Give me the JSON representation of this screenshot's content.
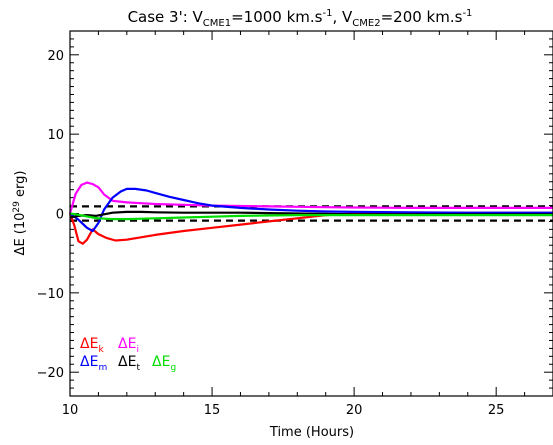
{
  "chart_data": {
    "type": "line",
    "title": {
      "prefix": "Case 3': V",
      "sub1": "CME1",
      "mid": "=1000 km.s",
      "sup1": "-1",
      "sep": ", V",
      "sub2": "CME2",
      "mid2": "=200 km.s",
      "sup2": "-1"
    },
    "xlabel": "Time (Hours)",
    "ylabel": {
      "main": "ΔE (10",
      "sup": "29",
      "end": " erg)"
    },
    "xlim": [
      10,
      27
    ],
    "ylim": [
      -23,
      23
    ],
    "x_ticks": [
      10,
      15,
      20,
      25
    ],
    "x_tick_labels": [
      "10",
      "15",
      "20",
      "25"
    ],
    "y_ticks": [
      -20,
      -10,
      0,
      10,
      20
    ],
    "y_tick_labels": [
      "−20",
      "−10",
      "0",
      "10",
      "20"
    ],
    "reference_lines": [
      0.9,
      -0.9
    ],
    "series": [
      {
        "name": "ΔE",
        "sub": "k",
        "color": "#ff0000",
        "x": [
          10.0,
          10.15,
          10.3,
          10.45,
          10.6,
          10.8,
          11.0,
          11.3,
          11.6,
          12.0,
          12.5,
          13.0,
          14.0,
          15.0,
          16.0,
          17.0,
          18.0,
          19.0,
          19.5,
          20.0,
          22.0,
          24.0,
          27.0
        ],
        "y": [
          0.0,
          -1.5,
          -3.5,
          -3.8,
          -3.3,
          -2.0,
          -2.6,
          -3.1,
          -3.4,
          -3.3,
          -3.0,
          -2.7,
          -2.2,
          -1.8,
          -1.4,
          -1.0,
          -0.6,
          -0.2,
          -0.1,
          0.0,
          0.1,
          0.1,
          0.1
        ]
      },
      {
        "name": "ΔE",
        "sub": "i",
        "color": "#ff00ff",
        "x": [
          10.0,
          10.2,
          10.4,
          10.6,
          10.8,
          11.0,
          11.2,
          11.5,
          12.0,
          12.5,
          13.0,
          14.0,
          15.0,
          16.0,
          17.0,
          18.0,
          19.0,
          20.0,
          22.0,
          24.0,
          27.0
        ],
        "y": [
          0.0,
          2.5,
          3.6,
          3.9,
          3.7,
          3.3,
          2.4,
          1.6,
          1.4,
          1.3,
          1.2,
          1.1,
          1.0,
          0.95,
          0.9,
          0.85,
          0.8,
          0.75,
          0.7,
          0.7,
          0.7
        ]
      },
      {
        "name": "ΔE",
        "sub": "m",
        "color": "#0000ff",
        "x": [
          10.0,
          10.3,
          10.6,
          10.8,
          11.0,
          11.2,
          11.5,
          11.8,
          12.0,
          12.3,
          12.7,
          13.0,
          13.5,
          14.0,
          14.5,
          15.0,
          16.0,
          17.0,
          18.0,
          19.0,
          20.0,
          22.0,
          24.0,
          27.0
        ],
        "y": [
          0.0,
          -0.8,
          -1.8,
          -2.2,
          -1.2,
          0.5,
          2.0,
          2.8,
          3.1,
          3.1,
          2.9,
          2.6,
          2.1,
          1.7,
          1.3,
          1.0,
          0.7,
          0.5,
          0.35,
          0.25,
          0.2,
          0.15,
          0.1,
          0.1
        ]
      },
      {
        "name": "ΔE",
        "sub": "t",
        "color": "#000000",
        "x": [
          10.0,
          10.3,
          10.6,
          10.9,
          11.2,
          11.5,
          12.0,
          12.5,
          13.0,
          14.0,
          15.0,
          16.0,
          17.0,
          18.0,
          19.0,
          20.0,
          22.0,
          24.0,
          27.0
        ],
        "y": [
          -0.5,
          -0.3,
          -0.2,
          -0.3,
          -0.1,
          0.1,
          0.2,
          0.2,
          0.15,
          0.1,
          0.1,
          0.1,
          0.05,
          0.0,
          -0.05,
          -0.1,
          -0.1,
          -0.1,
          -0.1
        ]
      },
      {
        "name": "ΔE",
        "sub": "g",
        "color": "#00dd00",
        "x": [
          10.0,
          10.2,
          10.5,
          10.8,
          11.0,
          11.5,
          12.0,
          13.0,
          14.0,
          15.0,
          16.0,
          18.0,
          20.0,
          22.0,
          24.0,
          27.0
        ],
        "y": [
          0.0,
          -0.1,
          -0.3,
          -0.5,
          -0.6,
          -0.7,
          -0.7,
          -0.6,
          -0.5,
          -0.4,
          -0.3,
          -0.2,
          -0.2,
          -0.2,
          -0.2,
          -0.2
        ]
      }
    ]
  }
}
